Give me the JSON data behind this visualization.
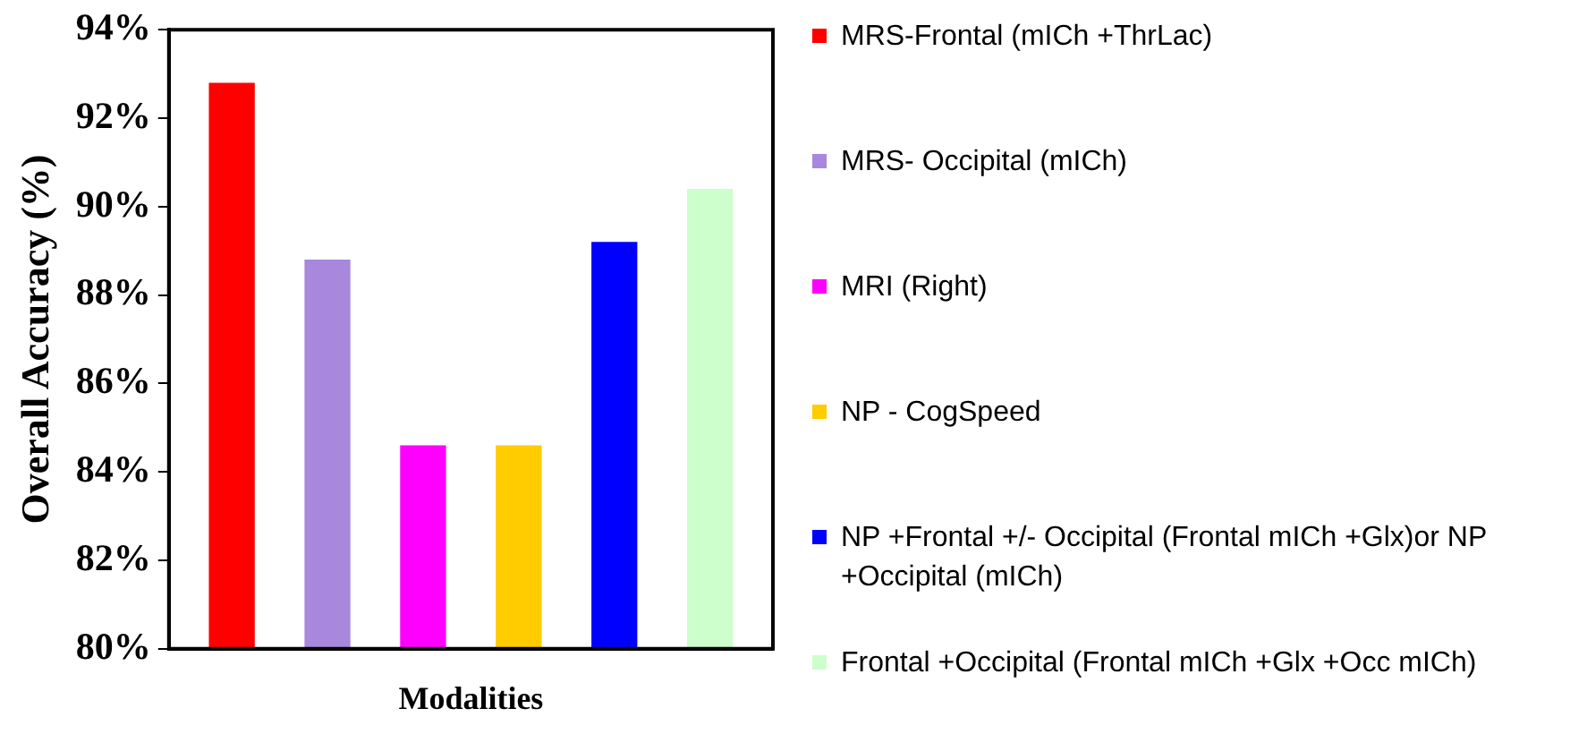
{
  "chart_data": {
    "type": "bar",
    "xlabel": "Modalities",
    "ylabel": "Overall Accuracy (%)",
    "categories": [
      null
    ],
    "series": [
      {
        "name": "MRS-Frontal (mICh +ThrLac)",
        "color": "#ff0000",
        "values": [
          92.8
        ]
      },
      {
        "name": "MRS- Occipital (mICh)",
        "color": "#a788dc",
        "values": [
          88.8
        ]
      },
      {
        "name": "MRI (Right)",
        "color": "#ff00ff",
        "values": [
          84.6
        ]
      },
      {
        "name": "NP - CogSpeed",
        "color": "#ffcc00",
        "values": [
          84.6
        ]
      },
      {
        "name": "NP +Frontal +/- Occipital (Frontal mICh +Glx)or NP +Occipital (mICh)",
        "color": "#0000ff",
        "values": [
          89.2
        ]
      },
      {
        "name": "Frontal +Occipital (Frontal mICh +Glx +Occ mICh)",
        "color": "#ccffcc",
        "values": [
          90.4
        ]
      }
    ],
    "ylim": [
      80,
      94
    ],
    "yticks": [
      {
        "value": 80,
        "label": "80%"
      },
      {
        "value": 82,
        "label": "82%"
      },
      {
        "value": 84,
        "label": "84%"
      },
      {
        "value": 86,
        "label": "86%"
      },
      {
        "value": 88,
        "label": "88%"
      },
      {
        "value": 90,
        "label": "90%"
      },
      {
        "value": 92,
        "label": "92%"
      },
      {
        "value": 94,
        "label": "94%"
      }
    ],
    "grid": false,
    "legend": "right"
  }
}
